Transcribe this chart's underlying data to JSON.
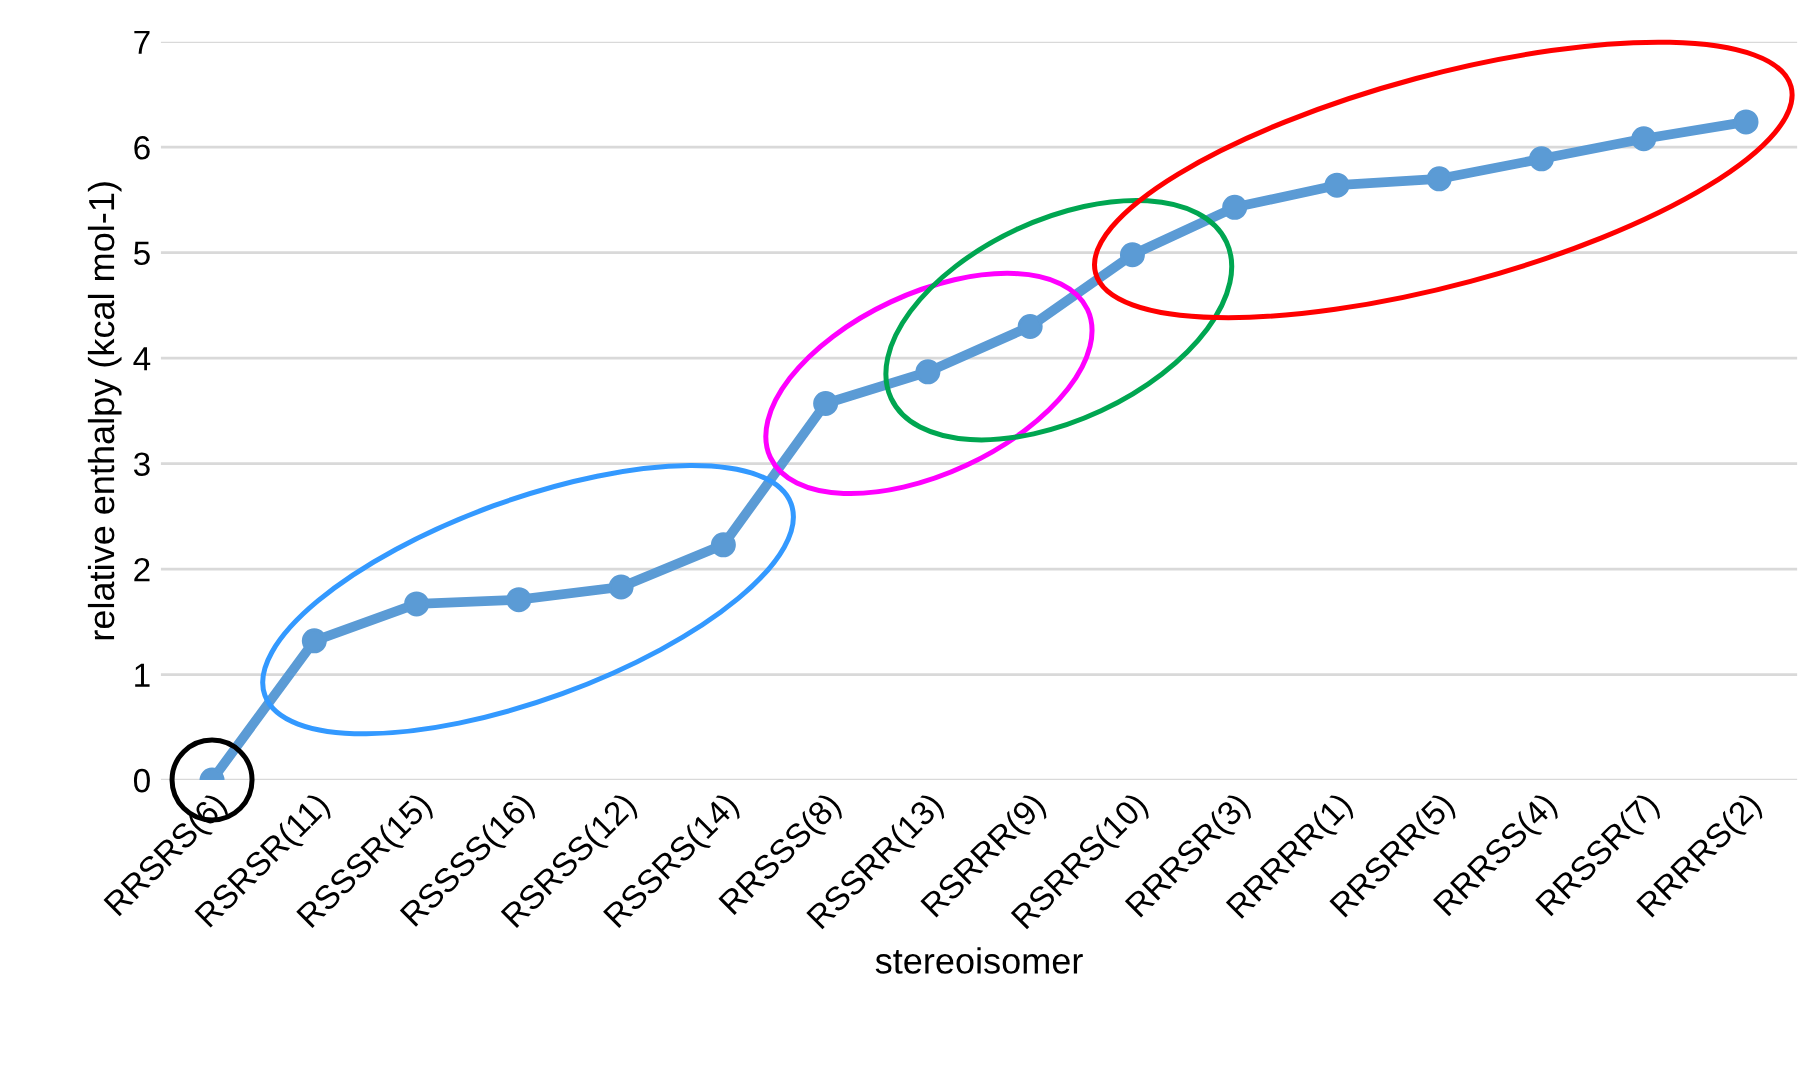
{
  "chart_data": {
    "type": "line",
    "xlabel": "stereoisomer",
    "ylabel": "relative enthalpy (kcal mol-1)",
    "categories": [
      "RRSRS(6)",
      "RSRSR(11)",
      "RSSSR(15)",
      "RSSSS(16)",
      "RSRSS(12)",
      "RSSRS(14)",
      "RRSSS(8)",
      "RSSRR(13)",
      "RSRRR(9)",
      "RSRRS(10)",
      "RRRSR(3)",
      "RRRRR(1)",
      "RRSRR(5)",
      "RRRSS(4)",
      "RRSSR(7)",
      "RRRRS(2)"
    ],
    "series": [
      {
        "color": "#5b9bd5",
        "values": [
          0,
          1.32,
          1.67,
          1.71,
          1.83,
          2.23,
          3.57,
          3.87,
          4.3,
          4.98,
          5.43,
          5.64,
          5.7,
          5.89,
          6.08,
          6.24
        ]
      }
    ],
    "ylim": [
      0,
      7
    ],
    "yticks": [
      0,
      1,
      2,
      3,
      4,
      5,
      6,
      7
    ],
    "grid": "y",
    "marker": "circle",
    "line_style": "solid",
    "legend": false
  }
}
